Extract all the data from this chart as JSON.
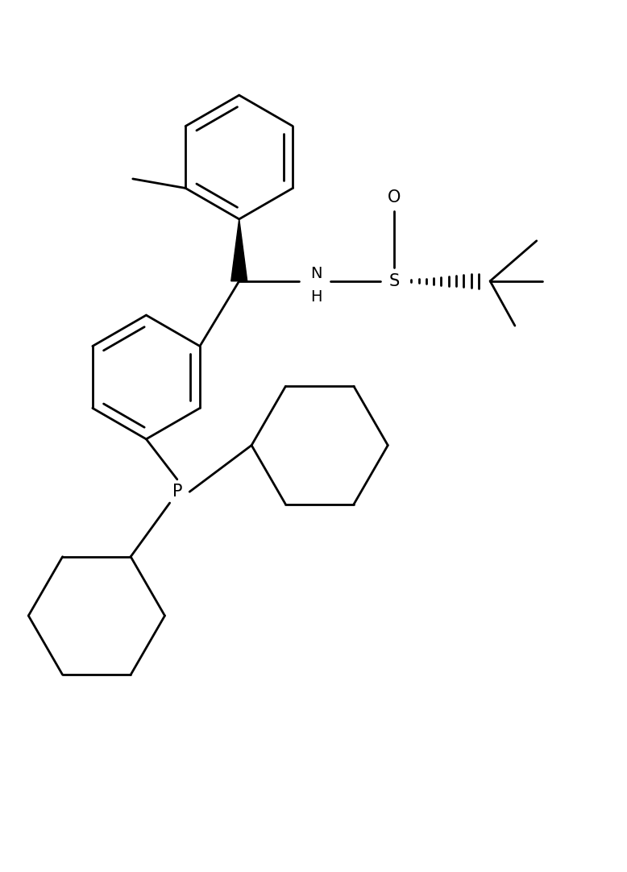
{
  "bg_color": "#ffffff",
  "line_color": "#000000",
  "line_width": 2.0,
  "fig_width": 7.78,
  "fig_height": 10.82,
  "xlim": [
    0,
    10
  ],
  "ylim": [
    0,
    14
  ]
}
